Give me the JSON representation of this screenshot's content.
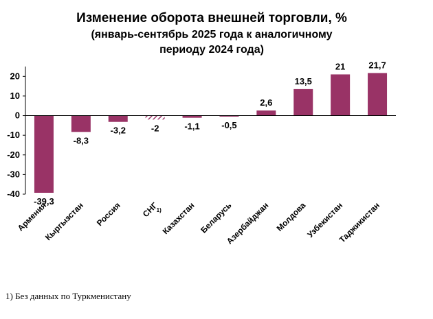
{
  "chart_data": {
    "type": "bar",
    "title": "Изменение оборота внешней торговли, %",
    "subtitle": "(январь-сентябрь 2025 года к аналогичному периоду 2024 года)",
    "subtitle_lines": [
      "(январь-сентябрь 2025 года к аналогичному",
      "периоду 2024 года)"
    ],
    "categories": [
      "Армения",
      "Кыргызстан",
      "Россия",
      "СНГ",
      "Казахстан",
      "Беларусь",
      "Азербайджан",
      "Молдова",
      "Узбекистан",
      "Таджикистан"
    ],
    "values": [
      -39.3,
      -8.3,
      -3.2,
      -2,
      -1.1,
      -0.5,
      2.6,
      13.5,
      21,
      21.7
    ],
    "value_labels": [
      "-39,3",
      "-8,3",
      "-3,2",
      "-2",
      "-1,1",
      "-0,5",
      "2,6",
      "13,5",
      "21",
      "21,7"
    ],
    "ylim": [
      -40,
      25
    ],
    "yticks": [
      -40,
      -30,
      -20,
      -10,
      0,
      10,
      20
    ],
    "ytick_labels": [
      "-40",
      "-30",
      "-20",
      "-10",
      "0",
      "10",
      "20"
    ],
    "xlabel": "",
    "ylabel": "",
    "grid": false,
    "colors": {
      "bar": "#993366",
      "hatched_bar": "#993366",
      "axis": "#000000"
    },
    "hatched_category": "СНГ",
    "category_note": {
      "category": "СНГ",
      "mark": "1)"
    }
  },
  "footnote": "1) Без данных по Туркменистану"
}
